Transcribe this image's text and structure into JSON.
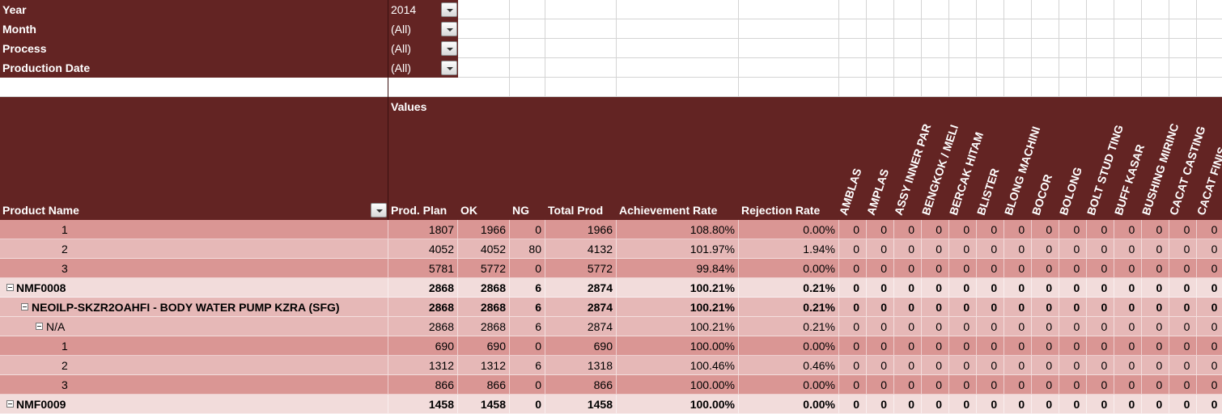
{
  "filters": [
    {
      "label": "Year",
      "value": "2014"
    },
    {
      "label": "Month",
      "value": "(All)"
    },
    {
      "label": "Process",
      "value": "(All)"
    },
    {
      "label": "Production Date",
      "value": "(All)"
    }
  ],
  "table": {
    "values_header": "Values",
    "row_header": "Product Name",
    "columns": [
      "Prod. Plan",
      "OK",
      "NG",
      "Total Prod",
      "Achievement Rate",
      "Rejection Rate"
    ],
    "defect_columns": [
      "AMBLAS",
      "AMPLAS",
      "ASSY INNER PAR",
      "BENGKOK / MELI",
      "BERCAK HITAM",
      "BLISTER",
      "BLONG MACHINI",
      "BOCOR",
      "BOLONG",
      "BOLT STUD TING",
      "BUFF KASAR",
      "BUSHING MIRINC",
      "CACAT CASTING",
      "CACAT FINIS"
    ],
    "rows": [
      {
        "label": "1",
        "values": [
          1807,
          1966,
          0,
          1966,
          "108.80%",
          "0.00%"
        ],
        "defects": [
          0,
          0,
          0,
          0,
          0,
          0,
          0,
          0,
          0,
          0,
          0,
          0,
          0,
          0
        ]
      },
      {
        "label": "2",
        "values": [
          4052,
          4052,
          80,
          4132,
          "101.97%",
          "1.94%"
        ],
        "defects": [
          0,
          0,
          0,
          0,
          0,
          0,
          0,
          0,
          0,
          0,
          0,
          0,
          0,
          0
        ]
      },
      {
        "label": "3",
        "values": [
          5781,
          5772,
          0,
          5772,
          "99.84%",
          "0.00%"
        ],
        "defects": [
          0,
          0,
          0,
          0,
          0,
          0,
          0,
          0,
          0,
          0,
          0,
          0,
          0,
          0
        ]
      },
      {
        "label": "NMF0008",
        "values": [
          2868,
          2868,
          6,
          2874,
          "100.21%",
          "0.21%"
        ],
        "defects": [
          0,
          0,
          0,
          0,
          0,
          0,
          0,
          0,
          0,
          0,
          0,
          0,
          0,
          0
        ]
      },
      {
        "label": "NEOILP-SKZR2OAHFI - BODY WATER PUMP KZRA (SFG)",
        "values": [
          2868,
          2868,
          6,
          2874,
          "100.21%",
          "0.21%"
        ],
        "defects": [
          0,
          0,
          0,
          0,
          0,
          0,
          0,
          0,
          0,
          0,
          0,
          0,
          0,
          0
        ]
      },
      {
        "label": "N/A",
        "values": [
          2868,
          2868,
          6,
          2874,
          "100.21%",
          "0.21%"
        ],
        "defects": [
          0,
          0,
          0,
          0,
          0,
          0,
          0,
          0,
          0,
          0,
          0,
          0,
          0,
          0
        ]
      },
      {
        "label": "1",
        "values": [
          690,
          690,
          0,
          690,
          "100.00%",
          "0.00%"
        ],
        "defects": [
          0,
          0,
          0,
          0,
          0,
          0,
          0,
          0,
          0,
          0,
          0,
          0,
          0,
          0
        ]
      },
      {
        "label": "2",
        "values": [
          1312,
          1312,
          6,
          1318,
          "100.46%",
          "0.46%"
        ],
        "defects": [
          0,
          0,
          0,
          0,
          0,
          0,
          0,
          0,
          0,
          0,
          0,
          0,
          0,
          0
        ]
      },
      {
        "label": "3",
        "values": [
          866,
          866,
          0,
          866,
          "100.00%",
          "0.00%"
        ],
        "defects": [
          0,
          0,
          0,
          0,
          0,
          0,
          0,
          0,
          0,
          0,
          0,
          0,
          0,
          0
        ]
      },
      {
        "label": "NMF0009",
        "values": [
          1458,
          1458,
          0,
          1458,
          "100.00%",
          "0.00%"
        ],
        "defects": [
          0,
          0,
          0,
          0,
          0,
          0,
          0,
          0,
          0,
          0,
          0,
          0,
          0,
          0
        ]
      }
    ]
  }
}
